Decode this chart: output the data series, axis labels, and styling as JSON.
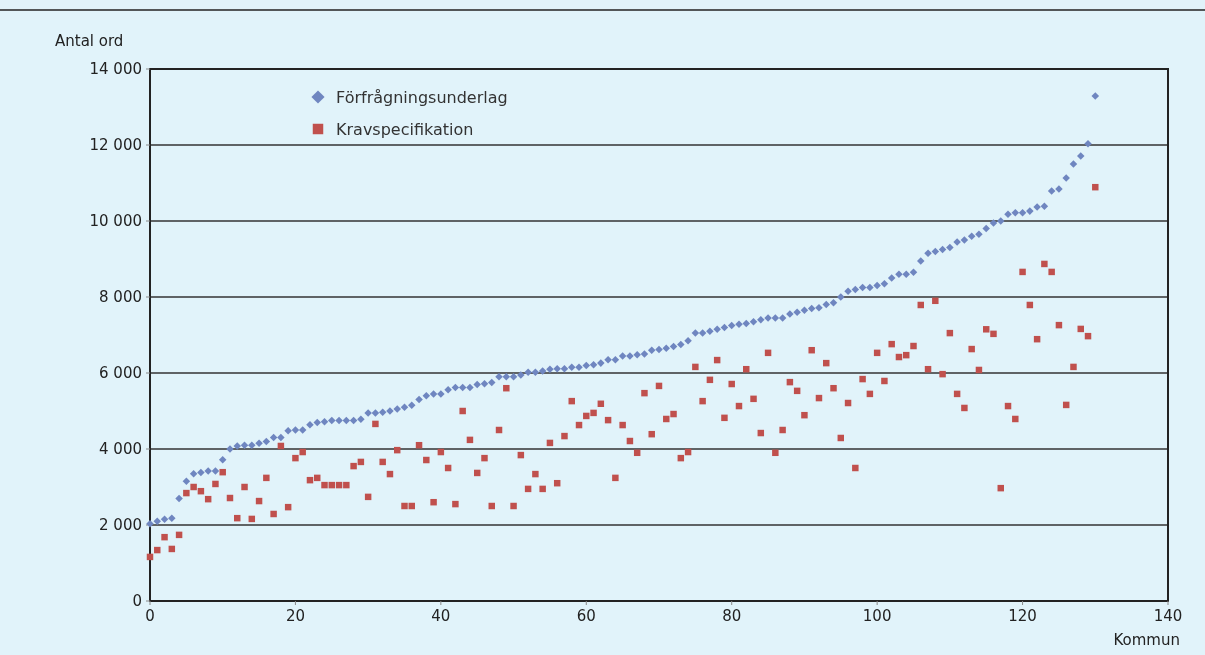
{
  "chart_data": {
    "type": "scatter",
    "xlabel": "Kommun",
    "ylabel": "Antal ord",
    "x": [
      0,
      1,
      2,
      3,
      4,
      5,
      6,
      7,
      8,
      9,
      10,
      11,
      12,
      13,
      14,
      15,
      16,
      17,
      18,
      19,
      20,
      21,
      22,
      23,
      24,
      25,
      26,
      27,
      28,
      29,
      30,
      31,
      32,
      33,
      34,
      35,
      36,
      37,
      38,
      39,
      40,
      41,
      42,
      43,
      44,
      45,
      46,
      47,
      48,
      49,
      50,
      51,
      52,
      53,
      54,
      55,
      56,
      57,
      58,
      59,
      60,
      61,
      62,
      63,
      64,
      65,
      66,
      67,
      68,
      69,
      70,
      71,
      72,
      73,
      74,
      75,
      76,
      77,
      78,
      79,
      80,
      81,
      82,
      83,
      84,
      85,
      86,
      87,
      88,
      89,
      90,
      91,
      92,
      93,
      94,
      95,
      96,
      97,
      98,
      99,
      100,
      101,
      102,
      103,
      104,
      105,
      106,
      107,
      108,
      109,
      110,
      111,
      112,
      113,
      114,
      115,
      116,
      117,
      118,
      119,
      120,
      121,
      122,
      123,
      124,
      125,
      126,
      127,
      128,
      129,
      130
    ],
    "series": [
      {
        "name": "Förfrågningsunderlag",
        "color": "#6f86c0",
        "marker": "diamond",
        "values": [
          2030,
          2100,
          2150,
          2180,
          2700,
          3150,
          3350,
          3380,
          3420,
          3420,
          3720,
          4000,
          4080,
          4100,
          4100,
          4150,
          4200,
          4300,
          4300,
          4480,
          4500,
          4500,
          4640,
          4700,
          4720,
          4750,
          4750,
          4750,
          4750,
          4780,
          4950,
          4950,
          4970,
          5000,
          5050,
          5100,
          5150,
          5300,
          5400,
          5450,
          5450,
          5560,
          5620,
          5620,
          5620,
          5700,
          5720,
          5750,
          5900,
          5900,
          5900,
          5950,
          6020,
          6020,
          6050,
          6100,
          6110,
          6110,
          6150,
          6150,
          6200,
          6220,
          6260,
          6350,
          6350,
          6450,
          6450,
          6480,
          6500,
          6600,
          6620,
          6650,
          6700,
          6750,
          6850,
          7050,
          7050,
          7100,
          7150,
          7200,
          7250,
          7280,
          7300,
          7350,
          7400,
          7450,
          7450,
          7450,
          7550,
          7600,
          7650,
          7700,
          7720,
          7800,
          7850,
          8000,
          8150,
          8200,
          8250,
          8250,
          8300,
          8350,
          8500,
          8600,
          8600,
          8650,
          8950,
          9150,
          9200,
          9250,
          9300,
          9450,
          9500,
          9600,
          9650,
          9800,
          9950,
          10000,
          10180,
          10220,
          10220,
          10260,
          10370,
          10390,
          10790,
          10840,
          11130,
          11500,
          11710,
          12030,
          13290
        ]
      },
      {
        "name": "Kravspecifikation",
        "color": "#c0504d",
        "marker": "square",
        "values": [
          1160,
          1340,
          1680,
          1370,
          1740,
          2840,
          3000,
          2890,
          2680,
          3080,
          3390,
          2710,
          2180,
          3000,
          2160,
          2630,
          3240,
          2290,
          4080,
          2470,
          3760,
          3920,
          3180,
          3240,
          3050,
          3050,
          3050,
          3050,
          3550,
          3660,
          2740,
          4660,
          3660,
          3340,
          3970,
          2500,
          2500,
          4100,
          3710,
          2600,
          3920,
          3500,
          2550,
          5000,
          4240,
          3370,
          3760,
          2500,
          4500,
          5600,
          2500,
          3840,
          2950,
          3340,
          2950,
          4160,
          3100,
          4340,
          5260,
          4630,
          4870,
          4950,
          5190,
          4760,
          3240,
          4630,
          4210,
          3900,
          5470,
          4390,
          5660,
          4790,
          4920,
          3760,
          3920,
          6160,
          5260,
          5820,
          6340,
          4820,
          5710,
          5130,
          6100,
          5320,
          4420,
          6530,
          3900,
          4500,
          5760,
          5530,
          4890,
          6600,
          5340,
          6260,
          5600,
          4290,
          5210,
          3500,
          5840,
          5450,
          6530,
          5790,
          6760,
          6420,
          6470,
          6710,
          7790,
          6100,
          7900,
          5970,
          7050,
          5450,
          5080,
          6630,
          6080,
          7150,
          7030,
          2970,
          5130,
          4790,
          8660,
          7790,
          6890,
          8870,
          8660,
          7260,
          5160,
          6160,
          7160,
          6970,
          10890
        ]
      }
    ],
    "xlim": [
      0,
      140
    ],
    "xticks": [
      0,
      20,
      40,
      60,
      80,
      100,
      120,
      140
    ],
    "ylim": [
      0,
      14000
    ],
    "yticks": [
      0,
      {
        "value": 2000,
        "label": "2 000"
      },
      {
        "value": 4000,
        "label": "4 000"
      },
      {
        "value": 6000,
        "label": "6 000"
      },
      {
        "value": 8000,
        "label": "8 000"
      },
      {
        "value": 10000,
        "label": "10 000"
      },
      {
        "value": 12000,
        "label": "12 000"
      },
      {
        "value": 14000,
        "label": "14 000"
      }
    ],
    "grid": "y",
    "legend": "top left"
  }
}
